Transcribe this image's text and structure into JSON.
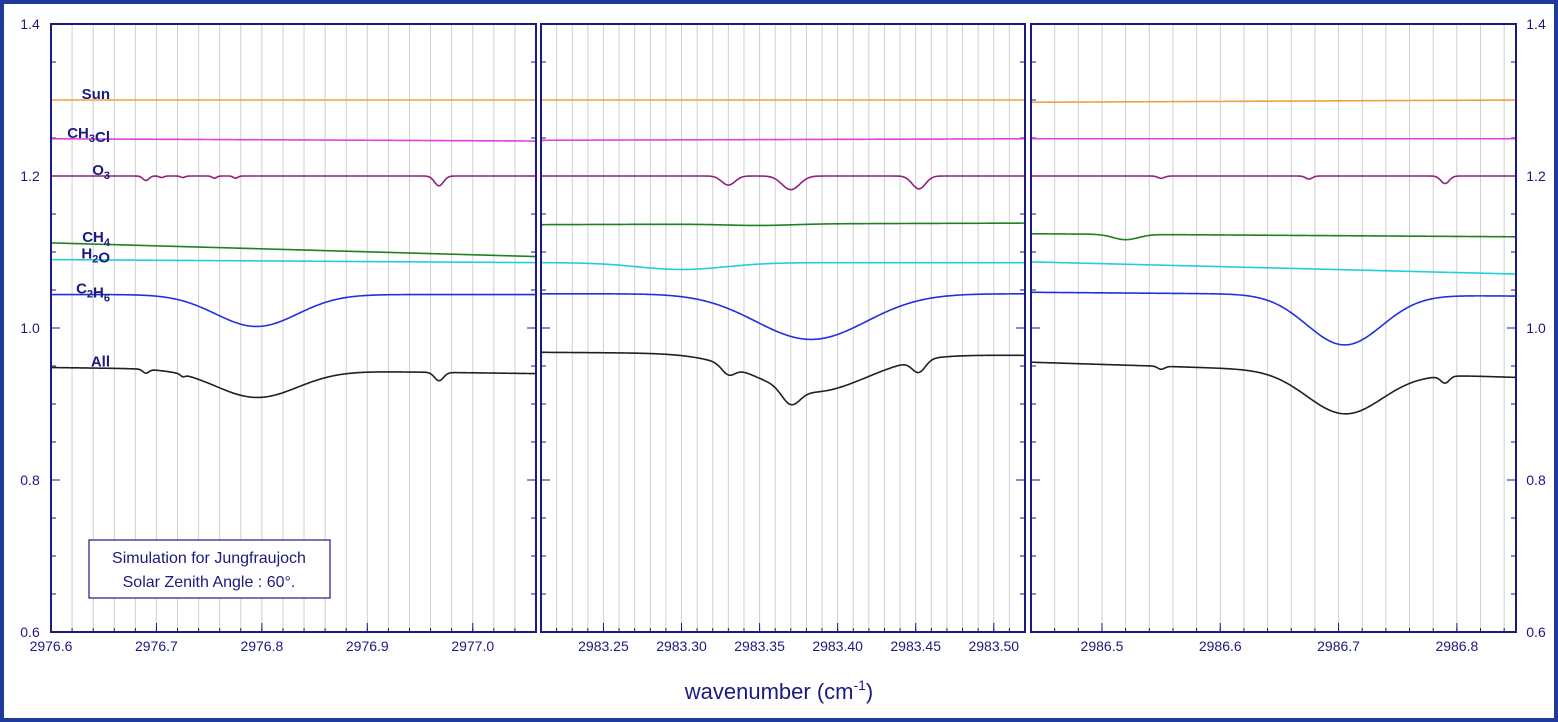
{
  "chart_data": {
    "type": "line",
    "title": "",
    "xlabel": "wavenumber (cm",
    "xlabel_superscript": "-1",
    "xlabel_suffix": ")",
    "ylim": [
      0.6,
      1.4
    ],
    "yticks": [
      "0.6",
      "0.8",
      "1.0",
      "1.2",
      "1.4"
    ],
    "grid": "vertical minor grid inside each panel",
    "annotation": [
      "Simulation for Jungfraujoch",
      "Solar Zenith Angle : 60°."
    ],
    "series_labels": [
      {
        "id": "sun",
        "main": "Sun",
        "sub": "",
        "rest": "",
        "color": "#f0a040"
      },
      {
        "id": "ch3cl",
        "main": "CH",
        "sub": "3",
        "rest": "Cl",
        "color": "#e040e0"
      },
      {
        "id": "o3",
        "main": "O",
        "sub": "3",
        "rest": "",
        "color": "#902080"
      },
      {
        "id": "ch4",
        "main": "CH",
        "sub": "4",
        "rest": "",
        "color": "#208020"
      },
      {
        "id": "h2o",
        "main": "H",
        "sub": "2",
        "rest": "O",
        "color": "#20d0d8"
      },
      {
        "id": "c2h6",
        "main": "C",
        "sub": "2",
        "rest": "H",
        "sub2": "6",
        "color": "#2030e0"
      },
      {
        "id": "all",
        "main": "All",
        "sub": "",
        "rest": "",
        "color": "#202020"
      }
    ],
    "panels": [
      {
        "xlim": [
          2976.6,
          2977.06
        ],
        "xticks": [
          2976.6,
          2976.7,
          2976.8,
          2976.9,
          2977.0
        ],
        "xtick_labels": [
          "2976.6",
          "2976.7",
          "2976.8",
          "2976.9",
          "2977.0"
        ],
        "series": [
          {
            "id": "sun",
            "base": 1.3,
            "slope": 0,
            "lines": []
          },
          {
            "id": "ch3cl",
            "base": 1.249,
            "slope": -0.003,
            "lines": []
          },
          {
            "id": "o3",
            "base": 1.2,
            "slope": 0,
            "lines": [
              {
                "c": 2976.69,
                "d": 0.006,
                "w": 0.004
              },
              {
                "c": 2976.705,
                "d": 0.002,
                "w": 0.003
              },
              {
                "c": 2976.725,
                "d": 0.002,
                "w": 0.003
              },
              {
                "c": 2976.755,
                "d": 0.003,
                "w": 0.003
              },
              {
                "c": 2976.775,
                "d": 0.003,
                "w": 0.003
              },
              {
                "c": 2976.968,
                "d": 0.013,
                "w": 0.006
              }
            ]
          },
          {
            "id": "ch4",
            "base": 1.112,
            "slope": -0.018,
            "lines": []
          },
          {
            "id": "h2o",
            "base": 1.09,
            "slope": -0.004,
            "lines": []
          },
          {
            "id": "c2h6",
            "base": 1.044,
            "slope": 0,
            "lines": [
              {
                "c": 2976.795,
                "d": 0.042,
                "w": 0.055
              }
            ]
          },
          {
            "id": "all",
            "base": 0.948,
            "slope": -0.008,
            "lines": [
              {
                "c": 2976.69,
                "d": 0.005,
                "w": 0.004
              },
              {
                "c": 2976.725,
                "d": 0.003,
                "w": 0.003
              },
              {
                "c": 2976.795,
                "d": 0.036,
                "w": 0.055
              },
              {
                "c": 2976.968,
                "d": 0.011,
                "w": 0.006
              }
            ]
          }
        ]
      },
      {
        "xlim": [
          2983.21,
          2983.52
        ],
        "xticks": [
          2983.25,
          2983.3,
          2983.35,
          2983.4,
          2983.45,
          2983.5
        ],
        "xtick_labels": [
          "2983.25",
          "2983.30",
          "2983.35",
          "2983.40",
          "2983.45",
          "2983.50"
        ],
        "series": [
          {
            "id": "sun",
            "base": 1.3,
            "slope": 0,
            "lines": []
          },
          {
            "id": "ch3cl",
            "base": 1.247,
            "slope": 0.002,
            "lines": []
          },
          {
            "id": "o3",
            "base": 1.2,
            "slope": 0,
            "lines": [
              {
                "c": 2983.33,
                "d": 0.012,
                "w": 0.006
              },
              {
                "c": 2983.37,
                "d": 0.018,
                "w": 0.008
              },
              {
                "c": 2983.452,
                "d": 0.017,
                "w": 0.006
              }
            ]
          },
          {
            "id": "ch4",
            "base": 1.136,
            "slope": 0.002,
            "lines": [
              {
                "c": 2983.35,
                "d": 0.002,
                "w": 0.03
              }
            ]
          },
          {
            "id": "h2o",
            "base": 1.086,
            "slope": 0,
            "lines": [
              {
                "c": 2983.3,
                "d": 0.009,
                "w": 0.04
              }
            ]
          },
          {
            "id": "c2h6",
            "base": 1.045,
            "slope": 0,
            "lines": [
              {
                "c": 2983.383,
                "d": 0.06,
                "w": 0.05
              }
            ]
          },
          {
            "id": "all",
            "base": 0.968,
            "slope": -0.004,
            "lines": [
              {
                "c": 2983.33,
                "d": 0.012,
                "w": 0.006
              },
              {
                "c": 2983.37,
                "d": 0.02,
                "w": 0.008
              },
              {
                "c": 2983.383,
                "d": 0.05,
                "w": 0.05
              },
              {
                "c": 2983.452,
                "d": 0.016,
                "w": 0.006
              }
            ]
          }
        ]
      },
      {
        "xlim": [
          2986.44,
          2986.85
        ],
        "xticks": [
          2986.5,
          2986.6,
          2986.7,
          2986.8
        ],
        "xtick_labels": [
          "2986.5",
          "2986.6",
          "2986.7",
          "2986.8"
        ],
        "series": [
          {
            "id": "sun",
            "base": 1.297,
            "slope": 0.003,
            "lines": []
          },
          {
            "id": "ch3cl",
            "base": 1.249,
            "slope": 0,
            "lines": []
          },
          {
            "id": "o3",
            "base": 1.2,
            "slope": 0,
            "lines": [
              {
                "c": 2986.55,
                "d": 0.003,
                "w": 0.004
              },
              {
                "c": 2986.675,
                "d": 0.004,
                "w": 0.004
              },
              {
                "c": 2986.79,
                "d": 0.01,
                "w": 0.005
              }
            ]
          },
          {
            "id": "ch4",
            "base": 1.124,
            "slope": -0.004,
            "lines": [
              {
                "c": 2986.52,
                "d": 0.007,
                "w": 0.015
              }
            ]
          },
          {
            "id": "h2o",
            "base": 1.087,
            "slope": -0.016,
            "lines": []
          },
          {
            "id": "c2h6",
            "base": 1.047,
            "slope": -0.005,
            "lines": [
              {
                "c": 2986.705,
                "d": 0.066,
                "w": 0.045
              }
            ]
          },
          {
            "id": "all",
            "base": 0.955,
            "slope": -0.02,
            "lines": [
              {
                "c": 2986.55,
                "d": 0.004,
                "w": 0.004
              },
              {
                "c": 2986.705,
                "d": 0.055,
                "w": 0.045
              },
              {
                "c": 2986.79,
                "d": 0.009,
                "w": 0.005
              }
            ]
          }
        ]
      }
    ]
  }
}
